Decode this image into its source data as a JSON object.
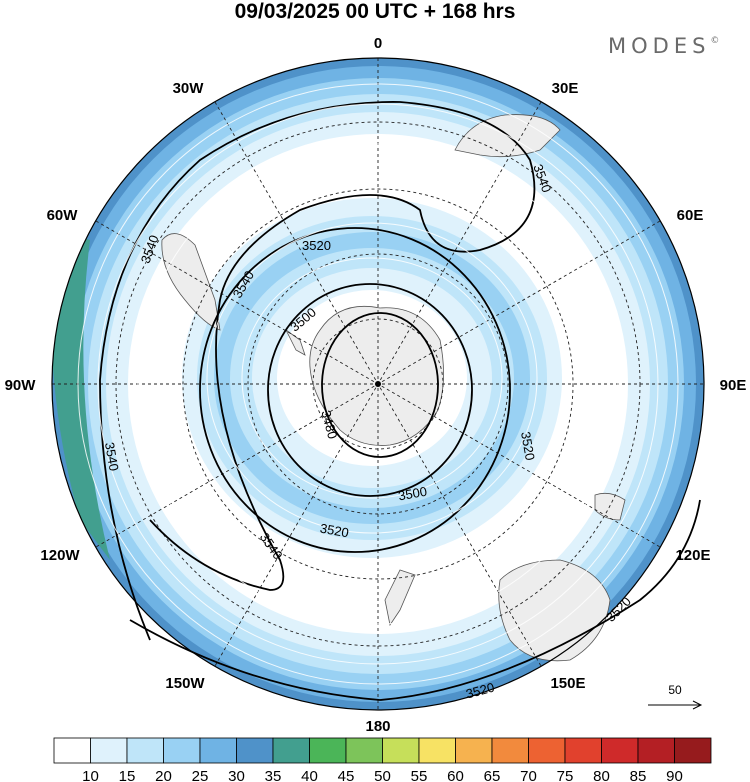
{
  "title": "09/03/2025  00 UTC  + 168 hrs",
  "brand": "MODES",
  "brand_mark": "©",
  "longitude_labels": {
    "north": "0",
    "ne": "30E",
    "nw": "30W",
    "east_upper": "60E",
    "west_upper": "60W",
    "east": "90E",
    "west": "90W",
    "east_lower": "120E",
    "west_lower": "120W",
    "se": "150E",
    "sw": "150W",
    "south": "180"
  },
  "contour_labels": [
    "3540",
    "3540",
    "3540",
    "3540",
    "3540",
    "3520",
    "3520",
    "3520",
    "3520",
    "3520",
    "3500",
    "3500",
    "3480"
  ],
  "reference_vector": "50",
  "colorbar": {
    "colors": [
      "#ffffff",
      "#dff2fc",
      "#bfe5f9",
      "#99d1f3",
      "#6fb3e4",
      "#4f92c9",
      "#429f8f",
      "#4bb558",
      "#7dc45a",
      "#c6df5a",
      "#f7e264",
      "#f6b24f",
      "#f28a3d",
      "#ed6232",
      "#e1412d",
      "#cf2a2a",
      "#b41f24",
      "#961b1d"
    ],
    "labels": [
      "10",
      "15",
      "20",
      "25",
      "30",
      "35",
      "40",
      "45",
      "50",
      "55",
      "60",
      "65",
      "70",
      "75",
      "80",
      "85",
      "90"
    ]
  }
}
